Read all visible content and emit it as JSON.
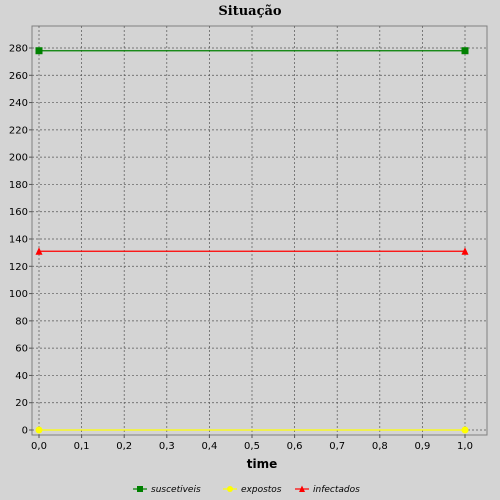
{
  "chart_data": {
    "type": "line",
    "title": "Situação",
    "xlabel": "time",
    "ylabel": "",
    "xlim": [
      0.0,
      1.0
    ],
    "ylim": [
      0,
      290
    ],
    "x_ticks": [
      "0,0",
      "0,1",
      "0,2",
      "0,3",
      "0,4",
      "0,5",
      "0,6",
      "0,7",
      "0,8",
      "0,9",
      "1,0"
    ],
    "y_ticks": [
      "0",
      "20",
      "40",
      "60",
      "80",
      "100",
      "120",
      "140",
      "160",
      "180",
      "200",
      "220",
      "240",
      "260",
      "280"
    ],
    "x": [
      0.0,
      1.0
    ],
    "grid": true,
    "legend_position": "bottom",
    "series": [
      {
        "name": "suscetiveis",
        "values": [
          278,
          278
        ],
        "color": "#008000",
        "marker": "square"
      },
      {
        "name": "expostos",
        "values": [
          0,
          0
        ],
        "color": "#ffff00",
        "marker": "circle"
      },
      {
        "name": "infectados",
        "values": [
          131,
          131
        ],
        "color": "#ff0000",
        "marker": "triangle"
      }
    ]
  }
}
